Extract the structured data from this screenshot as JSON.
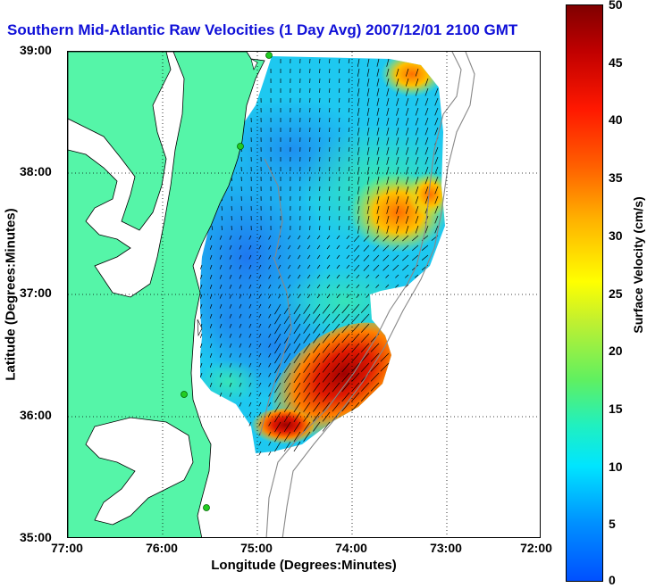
{
  "title": "Southern Mid-Atlantic Raw Velocities (1 Day Avg) 2007/12/01 2100 GMT",
  "x_axis": {
    "label": "Longitude (Degrees:Minutes)",
    "ticks": [
      "77:00",
      "76:00",
      "75:00",
      "74:00",
      "73:00",
      "72:00"
    ]
  },
  "y_axis": {
    "label": "Latitude (Degrees:Minutes)",
    "ticks": [
      "39:00",
      "38:00",
      "37:00",
      "36:00",
      "35:00"
    ]
  },
  "colorbar": {
    "label": "Surface Velocity (cm/s)",
    "ticks": [
      "50",
      "45",
      "40",
      "35",
      "30",
      "25",
      "20",
      "15",
      "10",
      "5",
      "0"
    ],
    "min": 0,
    "max": 50
  },
  "colors": {
    "land": "#55f5a8",
    "title": "#1010d8",
    "station": "#22cc22"
  },
  "map": {
    "lon_range": [
      -77,
      -72
    ],
    "lat_range": [
      35,
      39
    ],
    "grid": "dotted"
  }
}
